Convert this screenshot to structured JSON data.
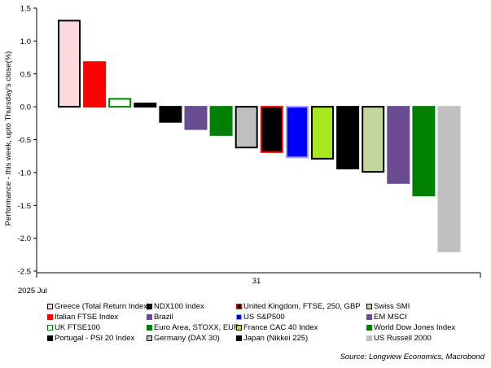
{
  "chart_data": {
    "type": "bar",
    "ylabel": "Performance - this week, upto Thursday's close(%)",
    "ylim": [
      -2.5,
      1.5
    ],
    "yticks": [
      -2.5,
      -2.0,
      -1.5,
      -1.0,
      -0.5,
      0.0,
      0.5,
      1.0,
      1.5
    ],
    "ytick_labels": [
      "-2.5",
      "-2.0",
      "-1.5",
      "-1.0",
      "-0.5",
      "0.0",
      "0.5",
      "1.0",
      "1.5"
    ],
    "x_tick_label": "31",
    "x_period_label": "2025 Jul",
    "series": [
      {
        "name": "Greece (Total Return Index)",
        "value": 1.31,
        "fill": "#fadadd",
        "stroke": "#000000"
      },
      {
        "name": "Italian FTSE Index",
        "value": 0.68,
        "fill": "#ff0000",
        "stroke": "#ff0000"
      },
      {
        "name": "UK FTSE100",
        "value": 0.12,
        "fill": "#ffffff",
        "stroke": "#008000"
      },
      {
        "name": "Portugal - PSI 20 Index",
        "value": 0.05,
        "fill": "#000000",
        "stroke": "#000000"
      },
      {
        "name": "NDX100 Index",
        "value": -0.23,
        "fill": "#000000",
        "stroke": "#000000"
      },
      {
        "name": "Brazil",
        "value": -0.34,
        "fill": "#6a4c93",
        "stroke": "#6a4c93"
      },
      {
        "name": "Euro Area, STOXX, EUR",
        "value": -0.43,
        "fill": "#008000",
        "stroke": "#008000"
      },
      {
        "name": "Germany (DAX 30)",
        "value": -0.62,
        "fill": "#c0c0c0",
        "stroke": "#000000"
      },
      {
        "name": "United Kingdom, FTSE, 250, GBP",
        "value": -0.69,
        "fill": "#000000",
        "stroke": "#ff0000"
      },
      {
        "name": "US S&P500",
        "value": -0.77,
        "fill": "#0000ff",
        "stroke": "#a0a0ff"
      },
      {
        "name": "France CAC 40 Index",
        "value": -0.79,
        "fill": "#a8e61d",
        "stroke": "#000000"
      },
      {
        "name": "Japan (Nikkei 225)",
        "value": -0.94,
        "fill": "#000000",
        "stroke": "#000000"
      },
      {
        "name": "Swiss SMI",
        "value": -0.99,
        "fill": "#c4d79b",
        "stroke": "#000000"
      },
      {
        "name": "EM MSCI",
        "value": -1.16,
        "fill": "#6a4c93",
        "stroke": "#6a4c93"
      },
      {
        "name": "World Dow Jones Index",
        "value": -1.35,
        "fill": "#008000",
        "stroke": "#008000"
      },
      {
        "name": "US Russell 2000",
        "value": -2.2,
        "fill": "#c0c0c0",
        "stroke": "#c0c0c0"
      }
    ],
    "legend_order": [
      "Greece (Total Return Index)",
      "NDX100 Index",
      "United Kingdom, FTSE, 250, GBP",
      "Swiss SMI",
      "Italian FTSE Index",
      "Brazil",
      "US S&P500",
      "EM MSCI",
      "UK FTSE100",
      "Euro Area, STOXX, EUR",
      "France CAC 40 Index",
      "World Dow Jones Index",
      "Portugal - PSI 20 Index",
      "Germany (DAX 30)",
      "Japan (Nikkei 225)",
      "US Russell 2000"
    ],
    "source": "Source: Longview Economics, Macrobond"
  }
}
